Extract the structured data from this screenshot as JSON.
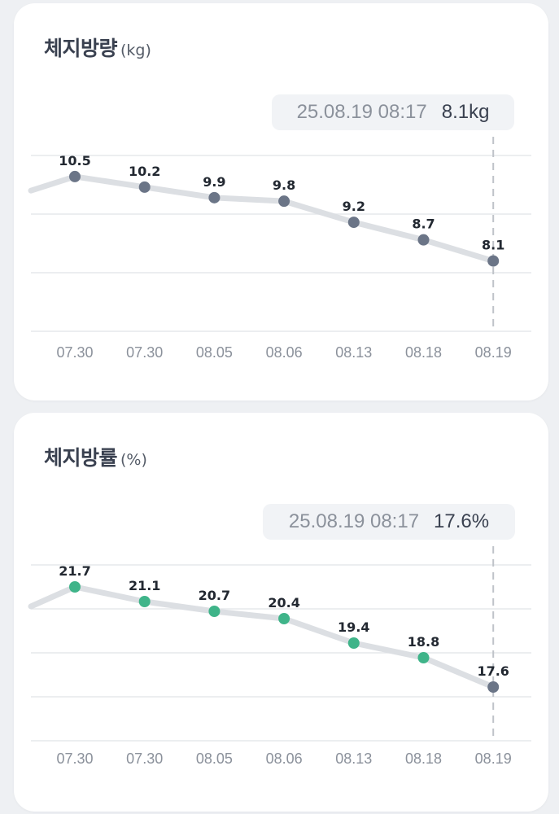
{
  "cards": {
    "weight": {
      "title": "체지방량",
      "unit": "(kg)",
      "tooltip": {
        "date": "25.08.19 08:17",
        "value": "8.1kg"
      }
    },
    "fat": {
      "title": "체지방률",
      "unit": "(%)",
      "tooltip": {
        "date": "25.08.19 08:17",
        "value": "17.6%"
      }
    }
  },
  "colors": {
    "line": "#dcdfe3",
    "point_default": "#6b7587",
    "point_good": "#3fb489",
    "grid": "#e6e8eb",
    "guide": "#bfc3c9",
    "label": "#222831",
    "axis_label": "#8b919b"
  },
  "chart_data": [
    {
      "type": "line",
      "title": "체지방량 (kg)",
      "categories": [
        "07.30",
        "07.30",
        "08.05",
        "08.06",
        "08.13",
        "08.18",
        "08.19"
      ],
      "values": [
        10.5,
        10.2,
        9.9,
        9.8,
        9.2,
        8.7,
        8.1
      ],
      "value_labels": [
        "10.5",
        "10.2",
        "9.9",
        "9.8",
        "9.2",
        "8.7",
        "8.1"
      ],
      "point_status": [
        "default",
        "default",
        "default",
        "default",
        "default",
        "default",
        "default"
      ],
      "lead_in_value": 10.1,
      "ylim": [
        6.1,
        11.1
      ],
      "grid_lines": 4,
      "selected_index": 6,
      "grid": true,
      "legend": "none"
    },
    {
      "type": "line",
      "title": "체지방률 (%)",
      "categories": [
        "07.30",
        "07.30",
        "08.05",
        "08.06",
        "08.13",
        "08.18",
        "08.19"
      ],
      "values": [
        21.7,
        21.1,
        20.7,
        20.4,
        19.4,
        18.8,
        17.6
      ],
      "value_labels": [
        "21.7",
        "21.1",
        "20.7",
        "20.4",
        "19.4",
        "18.8",
        "17.6"
      ],
      "point_status": [
        "good",
        "good",
        "good",
        "good",
        "good",
        "good",
        "default"
      ],
      "lead_in_value": 20.9,
      "ylim": [
        15.4,
        22.6
      ],
      "grid_lines": 5,
      "selected_index": 6,
      "grid": true,
      "legend": "none"
    }
  ]
}
